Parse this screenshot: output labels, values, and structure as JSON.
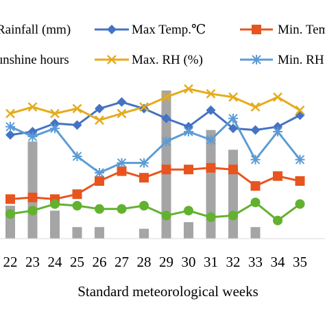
{
  "chart_data": {
    "type": "line",
    "title": "",
    "xlabel": "Standard meteorological weeks",
    "ylabel": "",
    "x": [
      "22",
      "23",
      "24",
      "25",
      "26",
      "27",
      "28",
      "29",
      "30",
      "31",
      "32",
      "33",
      "34",
      "35"
    ],
    "ylim": [
      0,
      100
    ],
    "grid": false,
    "legend_position": "top",
    "bar_series": {
      "name": "Rainfall (mm)",
      "color": "#a5a5a5",
      "values": [
        20,
        59,
        17,
        7,
        7,
        0,
        6,
        90,
        10,
        66,
        54,
        7,
        0,
        0
      ]
    },
    "series": [
      {
        "name": "Max Temp.℃",
        "color": "#4472c4",
        "marker": "diamond",
        "values": [
          63,
          65,
          70,
          69,
          79,
          83,
          79,
          73,
          68,
          78,
          67,
          66,
          68,
          75
        ]
      },
      {
        "name": "Min. Temp.℃",
        "color": "#e8541e",
        "marker": "square",
        "values": [
          24,
          25,
          24,
          27,
          35,
          41,
          37,
          42,
          42,
          43,
          42,
          32,
          38,
          35
        ]
      },
      {
        "name": "Sunshine hours",
        "color": "#62b12f",
        "marker": "circle",
        "values": [
          15,
          17,
          21,
          20,
          18,
          18,
          20,
          14,
          17,
          13,
          14,
          22,
          11,
          21
        ]
      },
      {
        "name": "Max. RH (%)",
        "color": "#e5ab1b",
        "marker": "x",
        "values": [
          76,
          80,
          76,
          79,
          72,
          76,
          80,
          86,
          91,
          88,
          86,
          80,
          86,
          78
        ]
      },
      {
        "name": "Min. RH (%)",
        "color": "#5b9bd5",
        "marker": "star",
        "values": [
          68,
          62,
          67,
          50,
          40,
          46,
          46,
          59,
          65,
          60,
          73,
          48,
          65,
          48
        ]
      }
    ]
  },
  "legend": {
    "items": [
      "Rainfall (mm)",
      "Max Temp.℃",
      "Min. Temp.℃",
      "Sunshine hours",
      "Max. RH (%)",
      "Min. RH (%)"
    ]
  }
}
